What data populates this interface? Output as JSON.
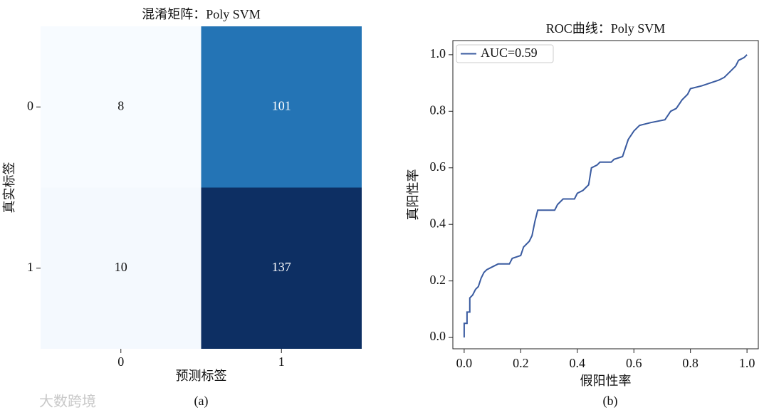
{
  "chart_data": [
    {
      "type": "heatmap",
      "title": "混淆矩阵：Poly SVM",
      "rows": [
        "0",
        "1"
      ],
      "columns": [
        "0",
        "1"
      ],
      "values": [
        [
          8,
          101
        ],
        [
          10,
          137
        ]
      ],
      "colors": [
        [
          "#f7fbff",
          "#2474b5"
        ],
        [
          "#f4f9fe",
          "#0d2f63"
        ]
      ],
      "xlabel": "预测标签",
      "ylabel": "真实标签",
      "caption": "(a)"
    },
    {
      "type": "line",
      "title": "ROC曲线：Poly SVM",
      "xlabel": "假阳性率",
      "ylabel": "真阳性率",
      "caption": "(b)",
      "xlim": [
        -0.04,
        1.04
      ],
      "ylim": [
        -0.04,
        1.05
      ],
      "xticks": [
        {
          "value": 0,
          "label": "0.0"
        },
        0.2,
        0.4,
        0.6,
        0.8,
        {
          "value": 1,
          "label": "1.0"
        }
      ],
      "yticks": [
        {
          "value": 0,
          "label": "0.0"
        },
        0.2,
        0.4,
        0.6,
        0.8,
        {
          "value": 1,
          "label": "1.0"
        }
      ],
      "legend": "upper left",
      "series": [
        {
          "name": "AUC=0.59",
          "color": "#3a5ba0",
          "x": [
            0,
            0,
            0.01,
            0.01,
            0.02,
            0.02,
            0.03,
            0.04,
            0.05,
            0.06,
            0.07,
            0.08,
            0.1,
            0.12,
            0.16,
            0.17,
            0.2,
            0.21,
            0.23,
            0.24,
            0.25,
            0.26,
            0.32,
            0.33,
            0.35,
            0.39,
            0.4,
            0.42,
            0.44,
            0.45,
            0.47,
            0.48,
            0.52,
            0.53,
            0.56,
            0.57,
            0.58,
            0.6,
            0.62,
            0.66,
            0.71,
            0.73,
            0.75,
            0.77,
            0.79,
            0.8,
            0.84,
            0.87,
            0.9,
            0.92,
            0.94,
            0.96,
            0.97,
            0.99,
            1
          ],
          "values": [
            0,
            0.05,
            0.05,
            0.09,
            0.09,
            0.14,
            0.15,
            0.17,
            0.18,
            0.21,
            0.23,
            0.24,
            0.25,
            0.26,
            0.26,
            0.28,
            0.29,
            0.32,
            0.34,
            0.36,
            0.41,
            0.45,
            0.45,
            0.47,
            0.49,
            0.49,
            0.51,
            0.52,
            0.54,
            0.6,
            0.61,
            0.62,
            0.62,
            0.63,
            0.64,
            0.67,
            0.7,
            0.73,
            0.75,
            0.76,
            0.77,
            0.8,
            0.81,
            0.84,
            0.86,
            0.88,
            0.89,
            0.9,
            0.91,
            0.92,
            0.94,
            0.96,
            0.98,
            0.99,
            1
          ]
        }
      ]
    }
  ],
  "watermark": "大数跨境"
}
